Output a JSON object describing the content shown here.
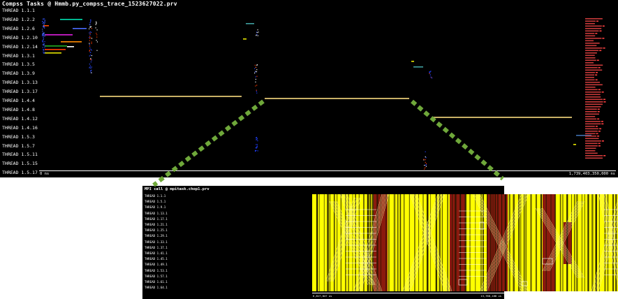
{
  "top_window": {
    "title": "Compss Tasks @ Hmmb.py_compss_trace_1523627022.prv",
    "threads": [
      "THREAD 1.1.1",
      "THREAD 1.2.2",
      "THREAD 1.2.6",
      "THREAD 1.2.10",
      "THREAD 1.2.14",
      "THREAD 1.3.1",
      "THREAD 1.3.5",
      "THREAD 1.3.9",
      "THREAD 1.3.13",
      "THREAD 1.3.17",
      "THREAD 1.4.4",
      "THREAD 1.4.8",
      "THREAD 1.4.12",
      "THREAD 1.4.16",
      "THREAD 1.5.3",
      "THREAD 1.5.7",
      "THREAD 1.5.11",
      "THREAD 1.5.15",
      "THREAD 1.5.17"
    ],
    "time_start": "0 ns",
    "time_end": "1,739,403,350,000 ns"
  },
  "bottom_window": {
    "title": "MPI call @ mpitask.chop1.prv",
    "threads": [
      "THREAD 1.1.1",
      "THREAD 1.5.1",
      "THREAD 1.9.1",
      "THREAD 1.13.1",
      "THREAD 1.17.1",
      "THREAD 1.21.1",
      "THREAD 1.25.1",
      "THREAD 1.29.1",
      "THREAD 1.33.1",
      "THREAD 1.37.1",
      "THREAD 1.41.1",
      "THREAD 1.45.1",
      "THREAD 1.49.1",
      "THREAD 1.53.1",
      "THREAD 1.57.1",
      "THREAD 1.61.1",
      "THREAD 1.64.1"
    ],
    "time_start": "6,817,847 us",
    "time_end": "13,780,188 us"
  },
  "colors": {
    "task_bar": "#c8b066",
    "mpi_yellow": "#ffff00",
    "mpi_dark_red": "#8b1a0e",
    "zoom_connector": "#6fa83a"
  }
}
